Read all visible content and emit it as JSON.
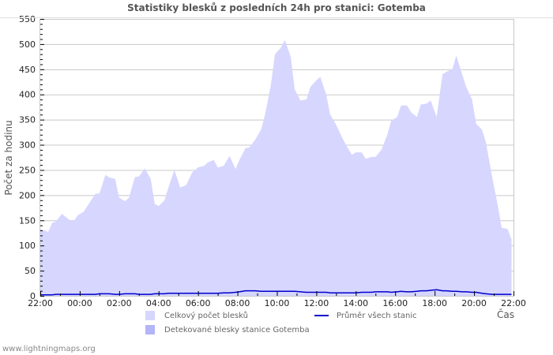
{
  "header": {
    "title": "Statistiky blesků z posledních 24h pro stanici: Gotemba"
  },
  "footer": {
    "site": "www.lightningmaps.org"
  },
  "colors": {
    "total_fill": "#d6d6ff",
    "detected_fill": "#b4b4f8",
    "average_line": "#0000cc",
    "grid": "#c8c8c8",
    "frame": "#c8c8c8"
  },
  "legend": {
    "items": [
      {
        "label": "Celkový počet blesků",
        "type": "area",
        "color": "#d6d6ff"
      },
      {
        "label": "Průměr všech stanic",
        "type": "line",
        "color": "#0000cc"
      },
      {
        "label": "Detekované blesky stanice Gotemba",
        "type": "area",
        "color": "#b4b4f8"
      }
    ]
  },
  "chart_data": {
    "type": "area",
    "title": "Statistiky blesků z posledních 24h pro stanici: Gotemba",
    "xlabel": "Čas",
    "ylabel": "Počet za hodinu",
    "ylim": [
      0,
      550
    ],
    "yticks": [
      0,
      50,
      100,
      150,
      200,
      250,
      300,
      350,
      400,
      450,
      500,
      550
    ],
    "xticks": [
      "22:00",
      "00:00",
      "02:00",
      "04:00",
      "06:00",
      "08:00",
      "10:00",
      "12:00",
      "14:00",
      "16:00",
      "18:00",
      "20:00",
      "22:00"
    ],
    "grid": true,
    "legend_position": "bottom",
    "x_hours": [
      0.0,
      0.2,
      0.4,
      0.6,
      0.8,
      1.1,
      1.5,
      1.7,
      1.9,
      2.2,
      2.5,
      2.8,
      3.0,
      3.3,
      3.5,
      3.8,
      4.0,
      4.3,
      4.5,
      4.8,
      5.0,
      5.3,
      5.6,
      5.8,
      6.0,
      6.3,
      6.5,
      6.8,
      7.1,
      7.4,
      7.7,
      8.0,
      8.3,
      8.5,
      8.8,
      9.0,
      9.3,
      9.6,
      9.9,
      10.1,
      10.4,
      10.6,
      10.9,
      11.2,
      11.4,
      11.7,
      11.9,
      12.2,
      12.4,
      12.7,
      12.9,
      13.2,
      13.5,
      13.7,
      14.0,
      14.2,
      14.5,
      14.7,
      15.0,
      15.3,
      15.5,
      15.8,
      16.0,
      16.3,
      16.5,
      16.8,
      17.0,
      17.3,
      17.6,
      17.8,
      18.1,
      18.3,
      18.6,
      18.8,
      19.1,
      19.3,
      19.6,
      19.8,
      20.1,
      20.4,
      20.6,
      20.9,
      21.1,
      21.4,
      21.6,
      21.9,
      22.1,
      22.4,
      22.6,
      22.9,
      23.2,
      23.4,
      23.7,
      23.9
    ],
    "series": [
      {
        "name": "Celkový počet blesků",
        "values": [
          133,
          130,
          127,
          145,
          148,
          163,
          150,
          148,
          160,
          167,
          185,
          203,
          203,
          240,
          235,
          232,
          195,
          188,
          195,
          236,
          237,
          253,
          232,
          183,
          178,
          190,
          215,
          250,
          215,
          220,
          245,
          255,
          258,
          265,
          270,
          255,
          258,
          278,
          252,
          270,
          293,
          295,
          310,
          330,
          360,
          420,
          480,
          493,
          508,
          475,
          410,
          388,
          390,
          415,
          428,
          435,
          400,
          360,
          340,
          315,
          300,
          280,
          285,
          285,
          272,
          276,
          276,
          290,
          320,
          348,
          355,
          378,
          378,
          365,
          355,
          380,
          382,
          388,
          355,
          440,
          445,
          450,
          477,
          440,
          415,
          390,
          342,
          330,
          305,
          240,
          180,
          135,
          133,
          112
        ]
      },
      {
        "name": "Průměr všech stanic",
        "values": [
          2,
          2,
          2,
          2,
          3,
          3,
          3,
          3,
          3,
          3,
          3,
          3,
          4,
          4,
          4,
          3,
          3,
          4,
          4,
          4,
          3,
          3,
          3,
          4,
          4,
          4,
          5,
          5,
          5,
          5,
          5,
          5,
          5,
          5,
          5,
          5,
          6,
          6,
          7,
          8,
          10,
          10,
          10,
          9,
          9,
          9,
          9,
          9,
          9,
          9,
          9,
          8,
          7,
          7,
          7,
          7,
          7,
          6,
          6,
          6,
          6,
          6,
          6,
          7,
          7,
          7,
          8,
          8,
          8,
          7,
          8,
          9,
          8,
          8,
          9,
          10,
          10,
          11,
          12,
          10,
          10,
          9,
          9,
          8,
          8,
          7,
          7,
          5,
          4,
          3,
          3,
          3,
          3,
          3
        ]
      },
      {
        "name": "Detekované blesky stanice Gotemba",
        "values": [
          0,
          0,
          0,
          0,
          0,
          0,
          0,
          0,
          0,
          0,
          0,
          0,
          0,
          0,
          0,
          0,
          0,
          0,
          0,
          0,
          0,
          0,
          0,
          0,
          0,
          0,
          0,
          0,
          0,
          0,
          0,
          0,
          0,
          0,
          0,
          0,
          0,
          0,
          0,
          0,
          0,
          0,
          0,
          0,
          0,
          0,
          0,
          0,
          0,
          0,
          0,
          0,
          0,
          0,
          0,
          0,
          0,
          0,
          0,
          0,
          0,
          0,
          0,
          0,
          0,
          0,
          0,
          0,
          0,
          0,
          0,
          0,
          0,
          0,
          0,
          0,
          0,
          0,
          0,
          0,
          0,
          0,
          0,
          0,
          0,
          0,
          0,
          0,
          0,
          0,
          0,
          0,
          0,
          0
        ]
      }
    ]
  }
}
